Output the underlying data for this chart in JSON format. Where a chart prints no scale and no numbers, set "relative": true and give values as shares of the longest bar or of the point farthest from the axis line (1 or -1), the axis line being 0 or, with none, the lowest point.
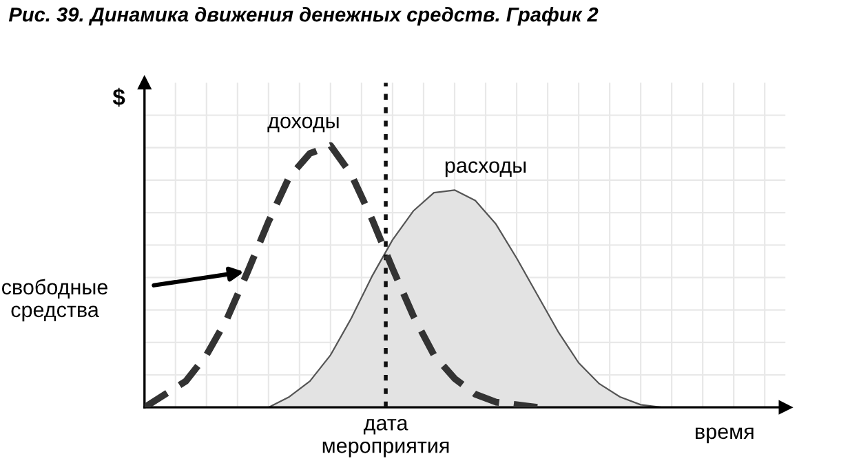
{
  "chart_data": {
    "type": "line",
    "title": "Рис. 39. Динамика движения денежных средств. График 2",
    "xlabel": "время",
    "ylabel": "$",
    "relative": true,
    "grid": true,
    "legend": false,
    "categories": [
      null,
      null,
      null,
      null,
      null,
      null,
      null,
      null,
      null,
      null,
      null,
      null,
      null,
      null,
      null,
      null,
      null,
      null,
      null,
      null,
      null,
      null,
      null,
      null,
      null,
      null,
      null,
      null,
      null,
      null,
      null
    ],
    "series": [
      {
        "name": "доходы",
        "color": "#333333",
        "line_style": "dashed",
        "values": [
          0.0,
          0.05,
          0.1,
          0.2,
          0.34,
          0.52,
          0.71,
          0.88,
          0.97,
          1.0,
          0.89,
          0.72,
          0.53,
          0.35,
          0.2,
          0.11,
          0.05,
          0.02,
          0.01,
          0.0,
          null,
          null,
          null,
          null,
          null,
          null,
          null,
          null,
          null,
          null,
          null
        ]
      },
      {
        "name": "расходы",
        "type": "area",
        "color": "#e3e3e3",
        "values": [
          null,
          null,
          null,
          null,
          null,
          null,
          0.0,
          0.04,
          0.1,
          0.2,
          0.34,
          0.5,
          0.64,
          0.75,
          0.82,
          0.83,
          0.79,
          0.7,
          0.57,
          0.43,
          0.29,
          0.17,
          0.09,
          0.04,
          0.01,
          0.0,
          null,
          null,
          null,
          null,
          null
        ]
      }
    ],
    "annotations": [
      "свободные\nсредства",
      "дата\nмероприятия"
    ]
  }
}
